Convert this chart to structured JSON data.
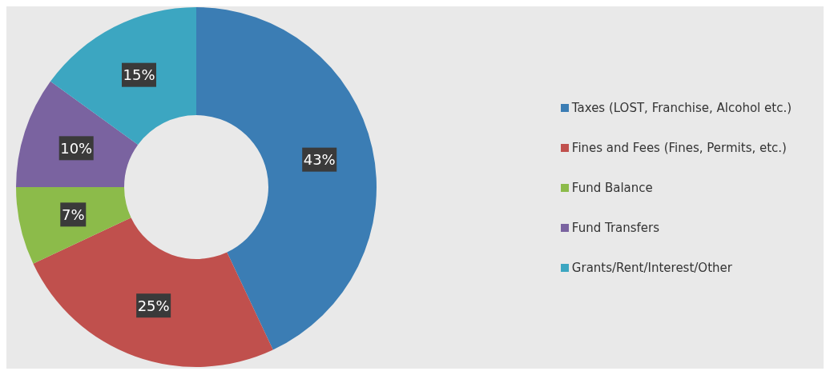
{
  "chart_data": {
    "type": "donut",
    "categories": [
      "Taxes (LOST, Franchise, Alcohol etc.)",
      "Fines and Fees (Fines, Permits, etc.)",
      "Fund Balance",
      "Fund Transfers",
      "Grants/Rent/Interest/Other"
    ],
    "values": [
      43,
      25,
      7,
      10,
      15
    ],
    "colors": [
      "#3b7db4",
      "#c0504d",
      "#8cbb4a",
      "#7a63a0",
      "#3ca6c1"
    ],
    "value_labels": [
      "43%",
      "25%",
      "7%",
      "10%",
      "15%"
    ],
    "legend": "right"
  }
}
